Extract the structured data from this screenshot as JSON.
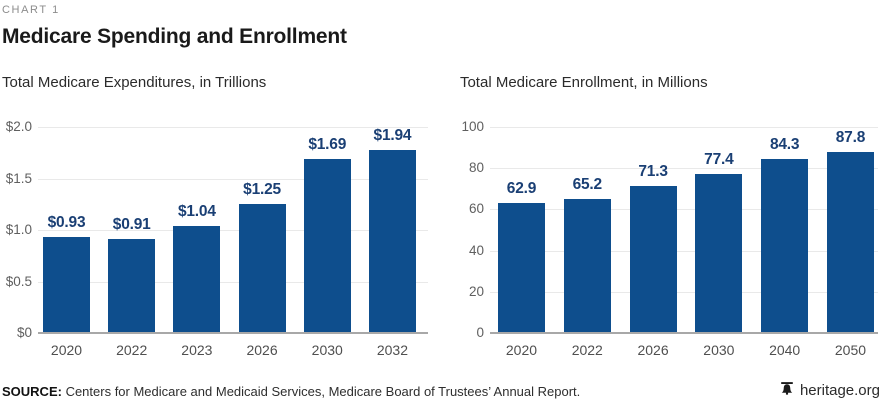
{
  "header": {
    "kicker": "CHART 1",
    "title": "Medicare Spending and Enrollment"
  },
  "chart_data": [
    {
      "type": "bar",
      "title": "Total Medicare Expenditures, in Trillions",
      "categories": [
        "2020",
        "2022",
        "2023",
        "2026",
        "2030",
        "2032"
      ],
      "values": [
        0.93,
        0.91,
        1.04,
        1.25,
        1.69,
        1.94
      ],
      "data_labels": [
        "$0.93",
        "$0.91",
        "$1.04",
        "$1.25",
        "$1.69",
        "$1.94"
      ],
      "ylim": [
        0,
        2.0
      ],
      "yticks": [
        0,
        0.5,
        1.0,
        1.5,
        2.0
      ],
      "ytick_labels": [
        "$0",
        "$0.5",
        "$1.0",
        "$1.5",
        "$2.0"
      ],
      "grid": true,
      "legend": "none",
      "bar_color": "#0e4e8d",
      "label_color": "#1a3f74"
    },
    {
      "type": "bar",
      "title": "Total Medicare Enrollment, in Millions",
      "categories": [
        "2020",
        "2022",
        "2026",
        "2030",
        "2040",
        "2050"
      ],
      "values": [
        62.9,
        65.2,
        71.3,
        77.4,
        84.3,
        87.8
      ],
      "data_labels": [
        "62.9",
        "65.2",
        "71.3",
        "77.4",
        "84.3",
        "87.8"
      ],
      "ylim": [
        0,
        100
      ],
      "yticks": [
        0,
        20,
        40,
        60,
        80,
        100
      ],
      "ytick_labels": [
        "0",
        "20",
        "40",
        "60",
        "80",
        "100"
      ],
      "grid": true,
      "legend": "none",
      "bar_color": "#0e4e8d",
      "label_color": "#1a3f74"
    }
  ],
  "footer": {
    "source_label": "SOURCE:",
    "source_text": " Centers for Medicare and Medicaid Services, Medicare Board of Trustees’ Annual Report.",
    "brand": "heritage.org"
  },
  "colors": {
    "bar_blue": "#0e4e8d",
    "value_label_navy": "#1a3f74",
    "gridline": "#e9e9e9",
    "axis_line": "#a8a8a8",
    "kicker_gray": "#8c8c8c"
  }
}
